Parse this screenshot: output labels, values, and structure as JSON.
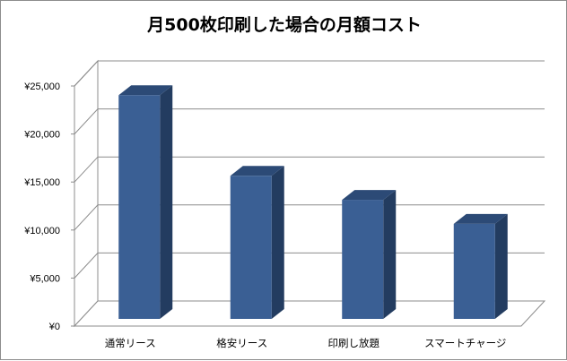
{
  "chart_data": {
    "type": "bar",
    "title": "月500枚印刷した場合の月額コスト",
    "categories": [
      "通常リース",
      "格安リース",
      "印刷し放題",
      "スマートチャージ"
    ],
    "values": [
      23300,
      14900,
      12400,
      9900
    ],
    "ylim": [
      0,
      25000
    ],
    "yticks": [
      "¥0",
      "¥5,000",
      "¥10,000",
      "¥15,000",
      "¥20,000",
      "¥25,000"
    ],
    "grid": true,
    "bar_style": "3d-column",
    "colors": {
      "bar_front": "#3a5f94",
      "bar_side": "#233c60",
      "bar_top": "#2c4a76",
      "grid": "#8c8c8c"
    }
  }
}
